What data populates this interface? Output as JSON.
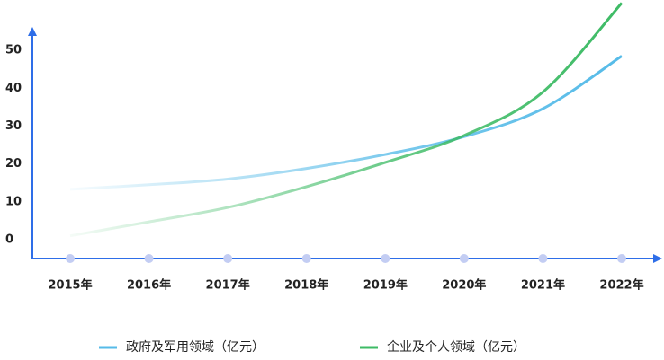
{
  "chart_data": {
    "type": "line",
    "categories": [
      "2015年",
      "2016年",
      "2017年",
      "2018年",
      "2019年",
      "2020年",
      "2021年",
      "2022年"
    ],
    "series": [
      {
        "name": "政府及军用领域（亿元）",
        "color": "#56bbe8",
        "values": [
          13.3,
          14.5,
          16,
          18.8,
          22.5,
          27.2,
          34.6,
          48.5
        ]
      },
      {
        "name": "企业及个人领域（亿元）",
        "color": "#3dbb65",
        "values": [
          1,
          4.7,
          8.5,
          14,
          20.4,
          27.5,
          39,
          62.5
        ]
      }
    ],
    "ylim": [
      -5,
      55
    ],
    "yticks": [
      0,
      10,
      20,
      30,
      40,
      50
    ],
    "grid": false,
    "axis_color": "#2e6ee8"
  }
}
